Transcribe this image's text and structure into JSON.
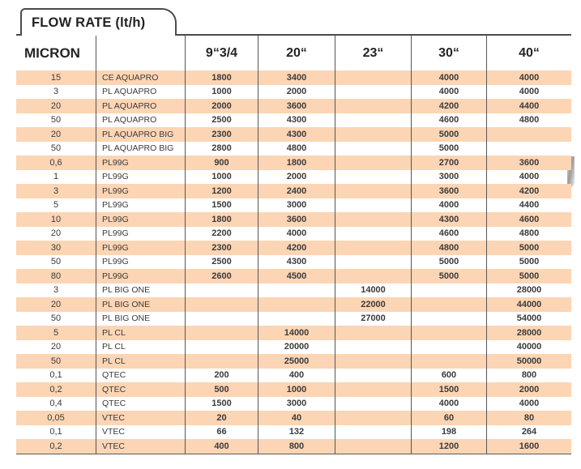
{
  "tab": {
    "label": "FLOW RATE  (lt/h)"
  },
  "colors": {
    "row_highlight": "#fcd5b4",
    "border": "#4b4b4b",
    "text": "#3b3b3b"
  },
  "table": {
    "headers": [
      "MICRON",
      "",
      "9“3/4",
      "20“",
      "23“",
      "30“",
      "40“"
    ],
    "rows": [
      [
        "15",
        "CE AQUAPRO",
        "1800",
        "3400",
        "",
        "4000",
        "4000"
      ],
      [
        "3",
        "PL AQUAPRO",
        "1000",
        "2000",
        "",
        "4000",
        "4000"
      ],
      [
        "20",
        "PL AQUAPRO",
        "2000",
        "3600",
        "",
        "4200",
        "4400"
      ],
      [
        "50",
        "PL AQUAPRO",
        "2500",
        "4300",
        "",
        "4600",
        "4800"
      ],
      [
        "20",
        "PL AQUAPRO BIG",
        "2300",
        "4300",
        "",
        "5000",
        ""
      ],
      [
        "50",
        "PL AQUAPRO BIG",
        "2800",
        "4800",
        "",
        "5000",
        ""
      ],
      [
        "0,6",
        "PL99G",
        "900",
        "1800",
        "",
        "2700",
        "3600"
      ],
      [
        "1",
        "PL99G",
        "1000",
        "2000",
        "",
        "3000",
        "4000"
      ],
      [
        "3",
        "PL99G",
        "1200",
        "2400",
        "",
        "3600",
        "4200"
      ],
      [
        "5",
        "PL99G",
        "1500",
        "3000",
        "",
        "4000",
        "4400"
      ],
      [
        "10",
        "PL99G",
        "1800",
        "3600",
        "",
        "4300",
        "4600"
      ],
      [
        "20",
        "PL99G",
        "2200",
        "4000",
        "",
        "4600",
        "4800"
      ],
      [
        "30",
        "PL99G",
        "2300",
        "4200",
        "",
        "4800",
        "5000"
      ],
      [
        "50",
        "PL99G",
        "2500",
        "4300",
        "",
        "5000",
        "5000"
      ],
      [
        "80",
        "PL99G",
        "2600",
        "4500",
        "",
        "5000",
        "5000"
      ],
      [
        "3",
        "PL BIG ONE",
        "",
        "",
        "14000",
        "",
        "28000"
      ],
      [
        "20",
        "PL BIG ONE",
        "",
        "",
        "22000",
        "",
        "44000"
      ],
      [
        "50",
        "PL BIG ONE",
        "",
        "",
        "27000",
        "",
        "54000"
      ],
      [
        "5",
        "PL CL",
        "",
        "14000",
        "",
        "",
        "28000"
      ],
      [
        "20",
        "PL CL",
        "",
        "20000",
        "",
        "",
        "40000"
      ],
      [
        "50",
        "PL CL",
        "",
        "25000",
        "",
        "",
        "50000"
      ],
      [
        "0,1",
        "QTEC",
        "200",
        "400",
        "",
        "600",
        "800"
      ],
      [
        "0,2",
        "QTEC",
        "500",
        "1000",
        "",
        "1500",
        "2000"
      ],
      [
        "0,4",
        "QTEC",
        "1500",
        "3000",
        "",
        "4000",
        "4000"
      ],
      [
        "0,05",
        "VTEC",
        "20",
        "40",
        "",
        "60",
        "80"
      ],
      [
        "0,1",
        "VTEC",
        "66",
        "132",
        "",
        "198",
        "264"
      ],
      [
        "0,2",
        "VTEC",
        "400",
        "800",
        "",
        "1200",
        "1600"
      ]
    ]
  }
}
